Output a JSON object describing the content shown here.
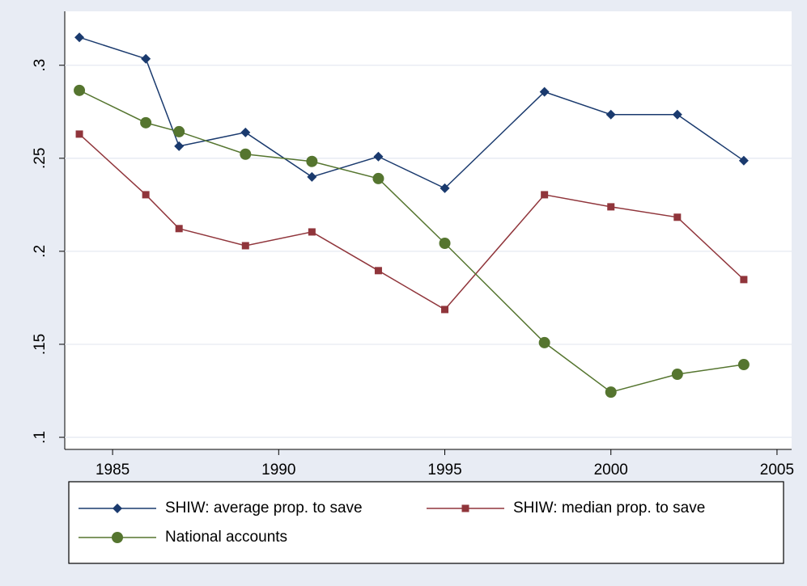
{
  "chart_data": {
    "type": "line",
    "x": [
      1984,
      1986,
      1987,
      1989,
      1991,
      1993,
      1995,
      1998,
      2000,
      2002,
      2004
    ],
    "series": [
      {
        "name": "SHIW: average prop. to save",
        "color": "#1a3a6e",
        "marker": "diamond",
        "values": [
          0.315,
          0.3035,
          0.2565,
          0.2639,
          0.24,
          0.2509,
          0.2339,
          0.2857,
          0.2735,
          0.2735,
          0.2487
        ]
      },
      {
        "name": "SHIW: median prop. to save",
        "color": "#90353b",
        "marker": "square",
        "values": [
          0.263,
          0.2304,
          0.2122,
          0.203,
          0.2104,
          0.1896,
          0.1687,
          0.2304,
          0.2239,
          0.2183,
          0.1848
        ]
      },
      {
        "name": "National accounts",
        "color": "#55752f",
        "marker": "circle",
        "values": [
          0.2865,
          0.2691,
          0.2643,
          0.2522,
          0.2483,
          0.2391,
          0.2043,
          0.1509,
          0.1243,
          0.1339,
          0.1391
        ]
      }
    ],
    "xlim": [
      1983.56,
      2005.44
    ],
    "xticks": [
      1985,
      1990,
      1995,
      2000,
      2005
    ],
    "ylim": [
      0.0935,
      0.329
    ],
    "yticks": [
      {
        "value": 0.1,
        "label": ".1"
      },
      {
        "value": 0.15,
        "label": ".15"
      },
      {
        "value": 0.2,
        "label": ".2"
      },
      {
        "value": 0.25,
        "label": ".25"
      },
      {
        "value": 0.3,
        "label": ".3"
      }
    ],
    "grid": true
  }
}
